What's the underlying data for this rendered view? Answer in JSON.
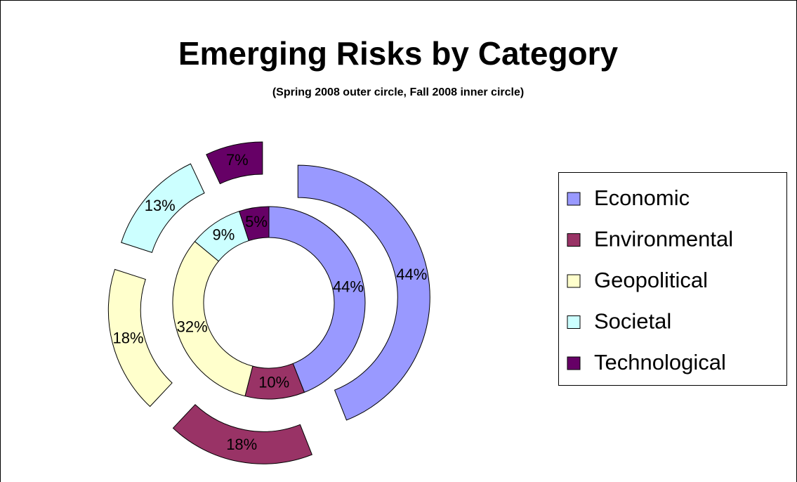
{
  "chart_data": {
    "type": "doughnut",
    "title": "Emerging Risks by Category",
    "subtitle": "(Spring 2008 outer circle, Fall 2008 inner circle)",
    "categories": [
      "Economic",
      "Environmental",
      "Geopolitical",
      "Societal",
      "Technological"
    ],
    "colors": [
      "#9999ff",
      "#993366",
      "#ffffcc",
      "#ccffff",
      "#660066"
    ],
    "series": [
      {
        "values": [
          44,
          18,
          18,
          13,
          7
        ],
        "value_labels": [
          "44%",
          "18%",
          "18%",
          "13%",
          "7%"
        ]
      },
      {
        "values": [
          44,
          10,
          32,
          9,
          5
        ],
        "value_labels": [
          "44%",
          "10%",
          "32%",
          "9%",
          "5%"
        ]
      }
    ],
    "legend": "right"
  }
}
